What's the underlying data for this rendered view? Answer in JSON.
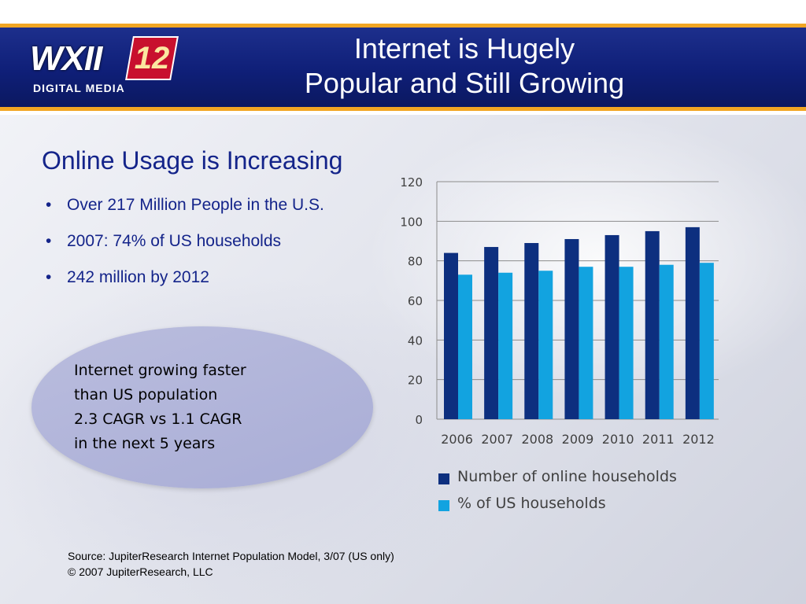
{
  "header": {
    "logo": {
      "letters": "WXII",
      "number": "12",
      "subtitle": "DIGITAL MEDIA"
    },
    "title_line1": "Internet is Hugely",
    "title_line2": "Popular and Still Growing"
  },
  "content": {
    "subtitle": "Online Usage is Increasing",
    "bullet_glyph": "•",
    "bullets": [
      "Over 217 Million People in the U.S.",
      "2007: 74% of US households",
      "242 million by 2012"
    ],
    "callout_lines": [
      "Internet growing faster",
      "than US population",
      "2.3 CAGR vs 1.1 CAGR",
      "in the next 5 years"
    ]
  },
  "source": {
    "line1": "Source: JupiterResearch Internet Population Model, 3/07 (US only)",
    "line2": "© 2007 JupiterResearch, LLC"
  },
  "colors": {
    "header_blue": "#0f1f78",
    "accent_gold": "#f2a623",
    "text_blue": "#14248a",
    "series_dark": "#0d2f7f",
    "series_light": "#12a3e0",
    "callout_fill": "#a9add6"
  },
  "chart_data": {
    "type": "bar",
    "categories": [
      "2006",
      "2007",
      "2008",
      "2009",
      "2010",
      "2011",
      "2012"
    ],
    "series": [
      {
        "name": "Number of online households",
        "color": "#0d2f7f",
        "values": [
          84,
          87,
          89,
          91,
          93,
          95,
          97
        ]
      },
      {
        "name": "% of US households",
        "color": "#12a3e0",
        "values": [
          73,
          74,
          75,
          77,
          77,
          78,
          79
        ]
      }
    ],
    "ylim": [
      0,
      120
    ],
    "yticks": [
      0,
      20,
      40,
      60,
      80,
      100,
      120
    ],
    "grid": true,
    "legend_position": "bottom"
  }
}
